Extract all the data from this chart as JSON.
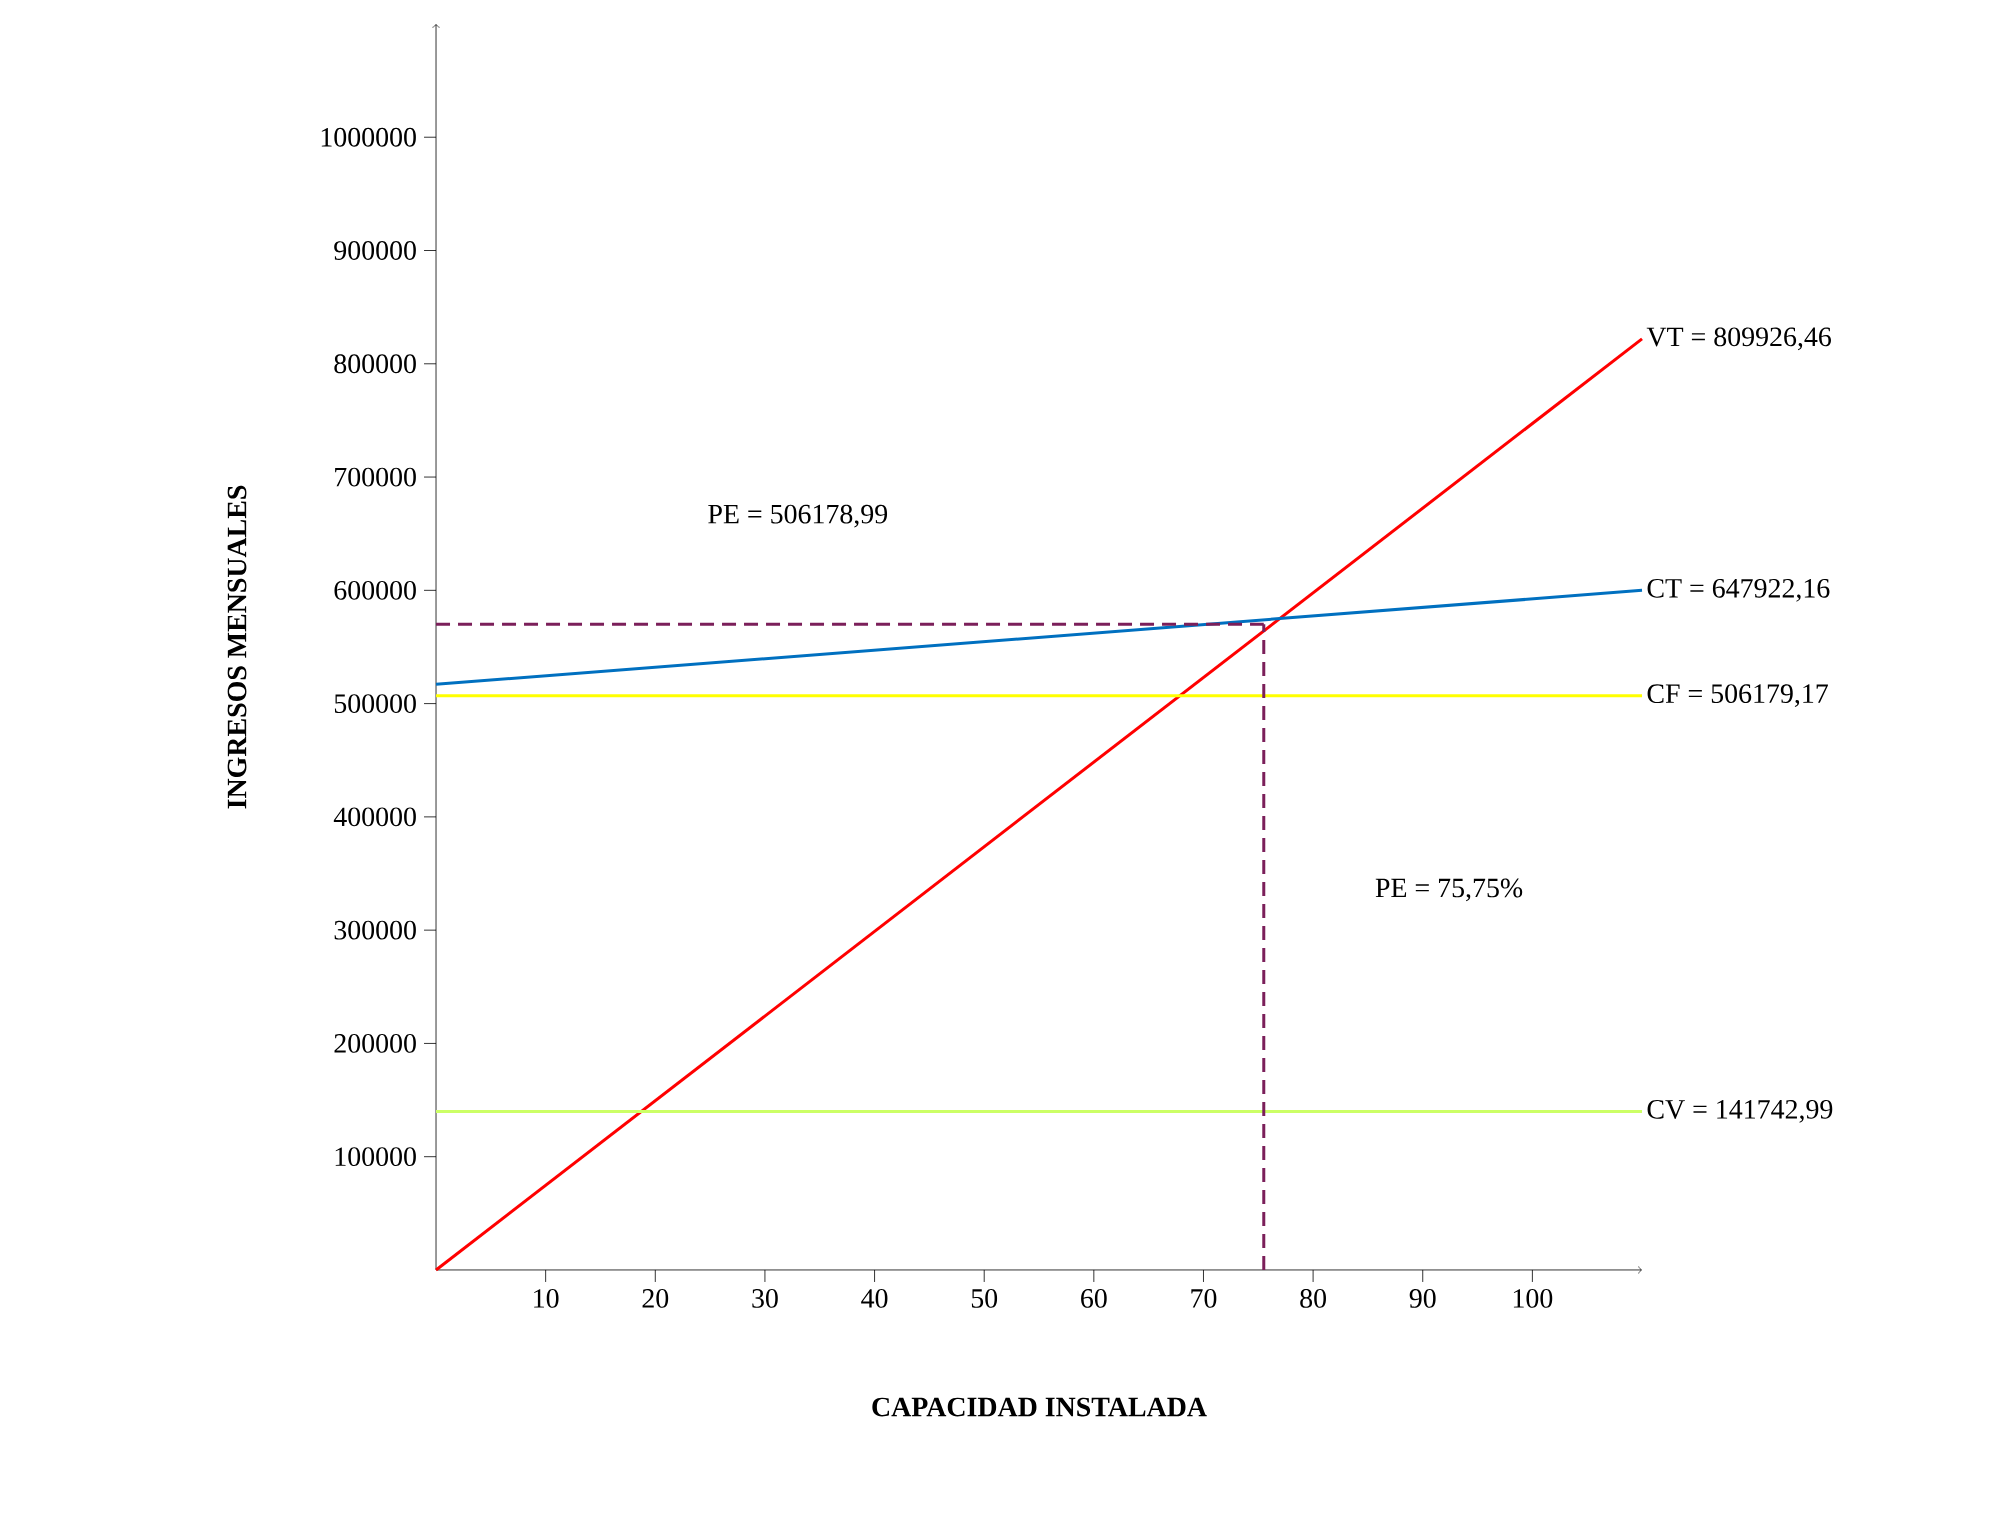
{
  "chart_data": {
    "type": "line",
    "xlabel": "CAPACIDAD INSTALADA",
    "ylabel": "INGRESOS MENSUALES",
    "xlim": [
      0,
      110
    ],
    "ylim": [
      0,
      1100000
    ],
    "xticks": [
      10,
      20,
      30,
      40,
      50,
      60,
      70,
      80,
      90,
      100
    ],
    "yticks": [
      100000,
      200000,
      300000,
      400000,
      500000,
      600000,
      700000,
      800000,
      900000,
      1000000
    ],
    "grid": false,
    "marker": "none",
    "series": [
      {
        "name": "VT = 809926,46",
        "color": "#ff0000",
        "x": [
          0,
          110
        ],
        "values": [
          0,
          822000
        ]
      },
      {
        "name": "CT = 647922,16",
        "color": "#0070c0",
        "x": [
          0,
          110
        ],
        "values": [
          517000,
          600000
        ]
      },
      {
        "name": "CF = 506179,17",
        "color": "#ffff00",
        "x": [
          0,
          110
        ],
        "values": [
          507000,
          507000
        ]
      },
      {
        "name": "CV = 141742,99",
        "color": "#ccff66",
        "x": [
          0,
          110
        ],
        "values": [
          140000,
          140000
        ]
      },
      {
        "color": "#7b1f5a",
        "line_style": "dashed",
        "x": [
          0,
          75.5
        ],
        "values": [
          570000,
          570000
        ]
      },
      {
        "color": "#7b1f5a",
        "line_style": "dashed",
        "x": [
          75.5,
          75.5
        ],
        "values": [
          0,
          570000
        ]
      }
    ],
    "annotations": [
      "PE = 506178,99",
      "PE = 75,75%"
    ]
  }
}
